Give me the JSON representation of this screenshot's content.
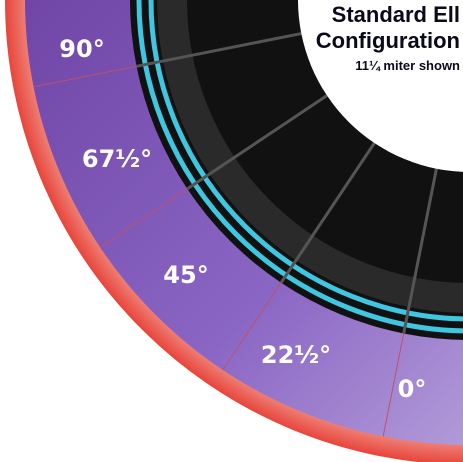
{
  "header": {
    "title_lines": [
      "Standard Ell",
      "Configuration"
    ],
    "subtitle": "11¼ miter shown"
  },
  "angles": [
    {
      "label": "90°"
    },
    {
      "label": "67½°"
    },
    {
      "label": "45°"
    },
    {
      "label": "22½°"
    },
    {
      "label": "0°"
    }
  ]
}
